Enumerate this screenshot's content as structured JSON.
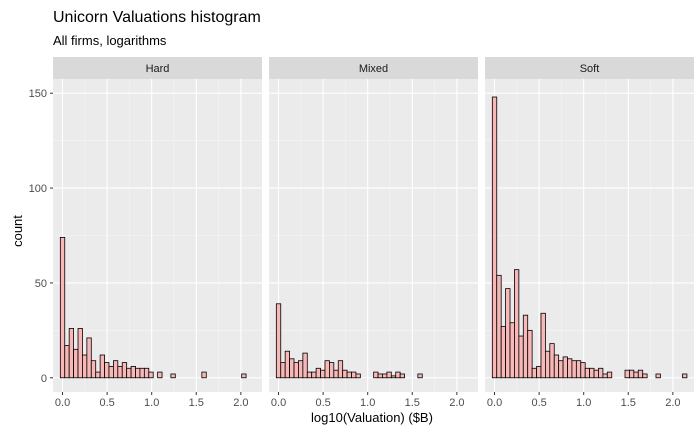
{
  "chart_data": {
    "type": "bar",
    "title": "Unicorn Valuations histogram",
    "subtitle": "All firms, logarithms",
    "xlabel": "log10(Valuation) ($B)",
    "ylabel": "count",
    "ylim": [
      -7.5,
      157.5
    ],
    "xlim": [
      -0.107,
      2.237
    ],
    "x_ticks": [
      "0.0",
      "0.5",
      "1.0",
      "1.5",
      "2.0"
    ],
    "y_ticks": [
      "0",
      "50",
      "100",
      "150"
    ],
    "bin_width": 0.0496,
    "bin_centers": [
      0.0,
      0.0496,
      0.0992,
      0.1488,
      0.1984,
      0.248,
      0.2976,
      0.3472,
      0.3968,
      0.4464,
      0.496,
      0.5456,
      0.5952,
      0.6448,
      0.6944,
      0.744,
      0.7936,
      0.8432,
      0.8928,
      0.9424,
      0.992,
      1.0416,
      1.0912,
      1.1408,
      1.1904,
      1.24,
      1.2896,
      1.3392,
      1.3888,
      1.4384,
      1.488,
      1.5376,
      1.5872,
      1.6368,
      1.6864,
      1.736,
      1.7856,
      1.8352,
      1.8848,
      1.9344,
      1.984,
      2.0336,
      2.0832,
      2.1328
    ],
    "fill": "#F8B8B8",
    "stroke": "#000000",
    "panel_bg": "#EBEBEB",
    "strip_bg": "#D9D9D9",
    "grid": true,
    "panels": [
      {
        "name": "Hard",
        "values": [
          74,
          17,
          26,
          15,
          26,
          12,
          21,
          9,
          3,
          12,
          8,
          6,
          9,
          6,
          8,
          5,
          6,
          5,
          5,
          5,
          3,
          0,
          3,
          0,
          0,
          2,
          0,
          0,
          0,
          0,
          0,
          0,
          3,
          0,
          0,
          0,
          0,
          0,
          0,
          0,
          0,
          2,
          0,
          0
        ]
      },
      {
        "name": "Mixed",
        "values": [
          39,
          8,
          14,
          10,
          8,
          9,
          13,
          3,
          3,
          5,
          4,
          9,
          8,
          4,
          9,
          4,
          3,
          3,
          2,
          0,
          0,
          0,
          3,
          2,
          2,
          3,
          1,
          3,
          2,
          0,
          0,
          0,
          2,
          0,
          0,
          0,
          0,
          0,
          0,
          0,
          0,
          0,
          0,
          0
        ]
      },
      {
        "name": "Soft",
        "values": [
          148,
          54,
          27,
          47,
          29,
          57,
          22,
          33,
          25,
          5,
          6,
          34,
          14,
          18,
          12,
          9,
          11,
          10,
          9,
          9,
          8,
          5,
          5,
          4,
          5,
          2,
          3,
          0,
          0,
          0,
          4,
          4,
          3,
          4,
          2,
          0,
          0,
          2,
          0,
          0,
          0,
          0,
          0,
          2
        ]
      }
    ]
  }
}
